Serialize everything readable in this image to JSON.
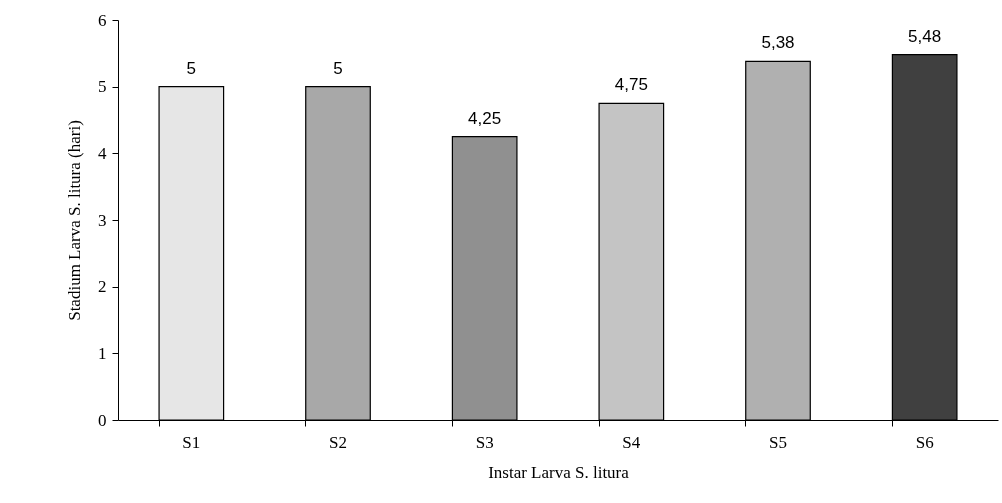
{
  "chart_data": {
    "type": "bar",
    "xlabel": "Instar Larva S. litura",
    "ylabel": "Stadium Larva S. litura (hari)",
    "categories": [
      "S1",
      "S2",
      "S3",
      "S4",
      "S5",
      "S6"
    ],
    "values": [
      5,
      5,
      4.25,
      4.75,
      5.38,
      5.48
    ],
    "value_labels": [
      "5",
      "5",
      "4,25",
      "4,75",
      "5,38",
      "5,48"
    ],
    "colors": [
      "#e6e6e6",
      "#a8a8a8",
      "#909090",
      "#c4c4c4",
      "#b0b0b0",
      "#404040"
    ],
    "ylim": [
      0,
      6
    ],
    "yticks": [
      0,
      1,
      2,
      3,
      4,
      5,
      6
    ],
    "grid": false
  }
}
